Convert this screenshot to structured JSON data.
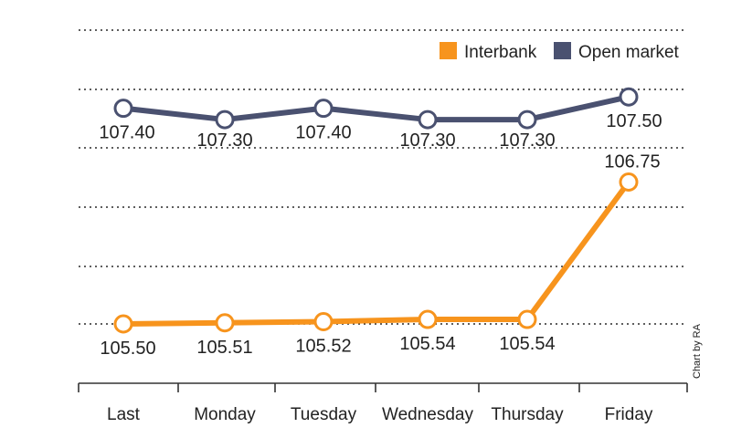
{
  "chart_data": {
    "type": "line",
    "categories": [
      "Last",
      "Monday",
      "Tuesday",
      "Wednesday",
      "Thursday",
      "Friday"
    ],
    "series": [
      {
        "name": "Interbank",
        "color": "#f7941d",
        "values": [
          105.5,
          105.51,
          105.52,
          105.54,
          105.54,
          106.75
        ],
        "labels": [
          "105.50",
          "105.51",
          "105.52",
          "105.54",
          "105.54",
          "106.75"
        ]
      },
      {
        "name": "Open market",
        "color": "#4a5170",
        "values": [
          107.4,
          107.3,
          107.4,
          107.3,
          107.3,
          107.5
        ],
        "labels": [
          "107.40",
          "107.30",
          "107.40",
          "107.30",
          "107.30",
          "107.50"
        ]
      }
    ],
    "legend_position": "top-right",
    "grid": true,
    "credit": "Chart by RA"
  }
}
